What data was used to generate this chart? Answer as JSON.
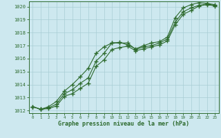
{
  "xlabel": "Graphe pression niveau de la mer (hPa)",
  "ylim": [
    1011.8,
    1020.4
  ],
  "xlim": [
    -0.5,
    23.5
  ],
  "yticks": [
    1012,
    1013,
    1014,
    1015,
    1016,
    1017,
    1018,
    1019,
    1020
  ],
  "xticks": [
    0,
    1,
    2,
    3,
    4,
    5,
    6,
    7,
    8,
    9,
    10,
    11,
    12,
    13,
    14,
    15,
    16,
    17,
    18,
    19,
    20,
    21,
    22,
    23
  ],
  "bg_color": "#cde8ef",
  "grid_color": "#a8cdd4",
  "line_color": "#2d6a2d",
  "line1": [
    1012.3,
    1012.1,
    1012.2,
    1012.5,
    1013.3,
    1013.6,
    1014.1,
    1014.5,
    1015.8,
    1016.4,
    1017.2,
    1017.2,
    1017.2,
    1016.7,
    1016.9,
    1017.0,
    1017.2,
    1017.5,
    1018.8,
    1019.6,
    1019.9,
    1020.1,
    1020.2,
    1020.1
  ],
  "line2": [
    1012.3,
    1012.1,
    1012.15,
    1012.35,
    1013.1,
    1013.3,
    1013.7,
    1014.1,
    1015.4,
    1015.9,
    1016.7,
    1016.85,
    1016.95,
    1016.6,
    1016.75,
    1016.9,
    1017.05,
    1017.35,
    1018.6,
    1019.4,
    1019.7,
    1020.05,
    1020.15,
    1020.05
  ],
  "line3": [
    1012.3,
    1012.1,
    1012.3,
    1012.7,
    1013.5,
    1014.0,
    1014.6,
    1015.25,
    1016.4,
    1016.9,
    1017.2,
    1017.25,
    1017.05,
    1016.75,
    1017.0,
    1017.2,
    1017.3,
    1017.65,
    1019.15,
    1019.9,
    1020.15,
    1020.3,
    1020.25,
    1020.15
  ]
}
